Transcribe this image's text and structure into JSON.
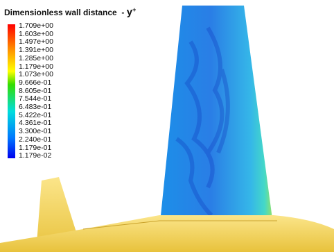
{
  "header": {
    "title": "Dimensionless wall distance  - ",
    "symbol": "y",
    "superscript": "+"
  },
  "colorbar": {
    "labels": [
      "1.709e+00",
      "1.603e+00",
      "1.497e+00",
      "1.391e+00",
      "1.285e+00",
      "1.179e+00",
      "1.073e+00",
      "9.666e-01",
      "8.605e-01",
      "7.544e-01",
      "6.483e-01",
      "5.422e-01",
      "4.361e-01",
      "3.300e-01",
      "2.240e-01",
      "1.179e-01",
      "1.179e-02"
    ]
  }
}
